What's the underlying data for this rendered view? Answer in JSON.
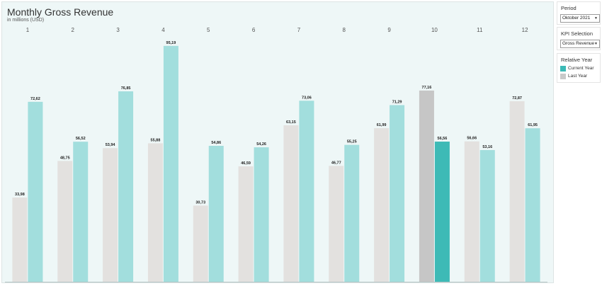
{
  "header": {
    "title": "Monthly Gross Revenue",
    "subtitle": "in millions (USD)"
  },
  "filters": {
    "period": {
      "heading": "Period",
      "selected": "Oktober 2021"
    },
    "kpi": {
      "heading": "KPI Selection",
      "selected": "Gross Revenue"
    },
    "legend": {
      "heading": "Relative Year",
      "items": [
        {
          "label": "Current Year",
          "color": "#3dbab6"
        },
        {
          "label": "Last Year",
          "color": "#c9c9c9"
        }
      ]
    }
  },
  "colors": {
    "current_year": "#a2dedd",
    "current_year_selected": "#3dbab6",
    "last_year": "#e3e1df",
    "last_year_selected": "#c6c6c6",
    "panel_background": "#eef7f7"
  },
  "chart_data": {
    "type": "bar",
    "title": "Monthly Gross Revenue",
    "subtitle": "in millions (USD)",
    "categories": [
      "1",
      "2",
      "3",
      "4",
      "5",
      "6",
      "7",
      "8",
      "9",
      "10",
      "11",
      "12"
    ],
    "series": [
      {
        "name": "Last Year",
        "values": [
          33.98,
          48.75,
          53.94,
          55.88,
          30.73,
          46.59,
          63.15,
          46.77,
          61.99,
          77.16,
          56.66,
          72.87
        ],
        "labels": [
          "33,98",
          "48,75",
          "53,94",
          "55,88",
          "30,73",
          "46,59",
          "63,15",
          "46,77",
          "61,99",
          "77,16",
          "56,66",
          "72,87"
        ]
      },
      {
        "name": "Current Year",
        "values": [
          72.62,
          56.52,
          76.85,
          95.19,
          54.86,
          54.26,
          73.06,
          55.25,
          71.29,
          56.56,
          53.16,
          61.95
        ],
        "labels": [
          "72,62",
          "56,52",
          "76,85",
          "95,19",
          "54,86",
          "54,26",
          "73,06",
          "55,25",
          "71,29",
          "56,56",
          "53,16",
          "61,95"
        ]
      }
    ],
    "highlighted_category": "10",
    "ylim": [
      0,
      100
    ],
    "grid": false,
    "legend": "right"
  }
}
